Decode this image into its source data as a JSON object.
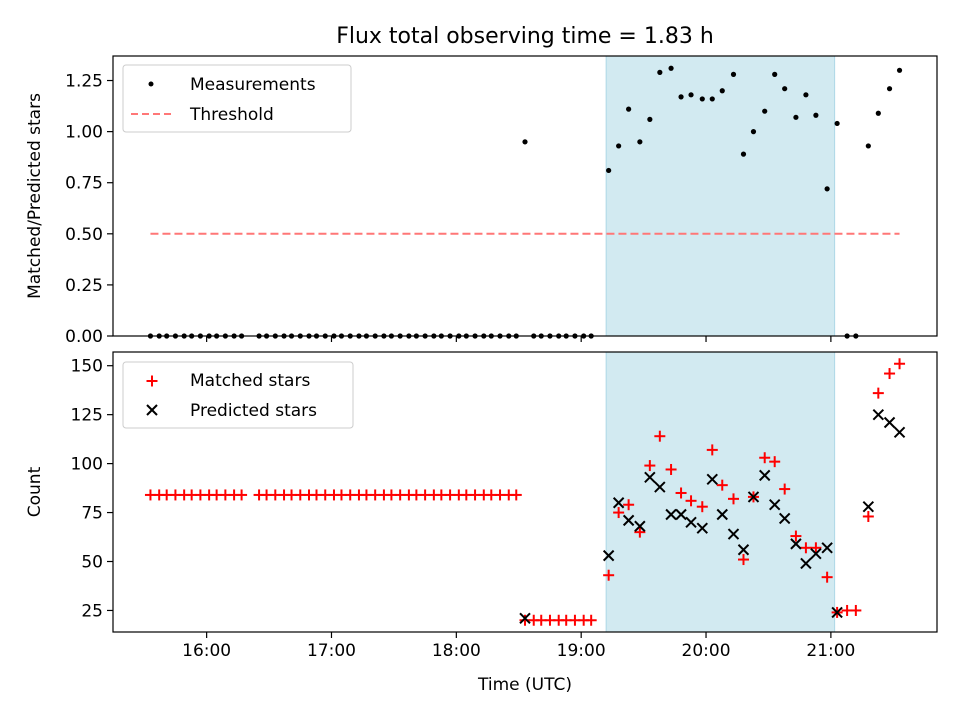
{
  "figure": {
    "title": "Flux total observing time = 1.83 h",
    "xlabel": "Time (UTC)",
    "x_ticks": [
      {
        "hours": 16,
        "label": "16:00"
      },
      {
        "hours": 17,
        "label": "17:00"
      },
      {
        "hours": 18,
        "label": "18:00"
      },
      {
        "hours": 19,
        "label": "19:00"
      },
      {
        "hours": 20,
        "label": "20:00"
      },
      {
        "hours": 21,
        "label": "21:00"
      }
    ]
  },
  "colors": {
    "measurement": "#000000",
    "threshold": "#ff7777",
    "matched": "#ff0000",
    "predicted": "#000000",
    "shade": "#add8e6"
  },
  "chart_data": [
    {
      "type": "scatter",
      "title": "Flux total observing time = 1.83 h",
      "ylabel": "Matched/Predicted stars",
      "xlabel": "",
      "x_unit": "hours UTC",
      "xlim": [
        15.25,
        21.85
      ],
      "ylim": [
        0,
        1.37
      ],
      "yticks": [
        "0.00",
        "0.25",
        "0.50",
        "0.75",
        "1.00",
        "1.25"
      ],
      "ytick_values": [
        0,
        0.25,
        0.5,
        0.75,
        1.0,
        1.25
      ],
      "shaded_interval": [
        19.2,
        21.03
      ],
      "legend": {
        "position": "top-left",
        "entries": [
          "Measurements",
          "Threshold"
        ]
      },
      "threshold": {
        "name": "Threshold",
        "y": 0.5,
        "x_range": [
          15.55,
          21.55
        ]
      },
      "series": [
        {
          "name": "Measurements",
          "marker": "dot",
          "points": [
            [
              15.55,
              0
            ],
            [
              15.62,
              0
            ],
            [
              15.68,
              0
            ],
            [
              15.75,
              0
            ],
            [
              15.82,
              0
            ],
            [
              15.88,
              0
            ],
            [
              15.95,
              0
            ],
            [
              16.02,
              0
            ],
            [
              16.08,
              0
            ],
            [
              16.15,
              0
            ],
            [
              16.22,
              0
            ],
            [
              16.28,
              0
            ],
            [
              16.42,
              0
            ],
            [
              16.48,
              0
            ],
            [
              16.55,
              0
            ],
            [
              16.62,
              0
            ],
            [
              16.68,
              0
            ],
            [
              16.75,
              0
            ],
            [
              16.82,
              0
            ],
            [
              16.88,
              0
            ],
            [
              16.95,
              0
            ],
            [
              17.02,
              0
            ],
            [
              17.08,
              0
            ],
            [
              17.15,
              0
            ],
            [
              17.22,
              0
            ],
            [
              17.28,
              0
            ],
            [
              17.35,
              0
            ],
            [
              17.42,
              0
            ],
            [
              17.48,
              0
            ],
            [
              17.55,
              0
            ],
            [
              17.62,
              0
            ],
            [
              17.68,
              0
            ],
            [
              17.75,
              0
            ],
            [
              17.82,
              0
            ],
            [
              17.88,
              0
            ],
            [
              17.95,
              0
            ],
            [
              18.02,
              0
            ],
            [
              18.08,
              0
            ],
            [
              18.15,
              0
            ],
            [
              18.22,
              0
            ],
            [
              18.28,
              0
            ],
            [
              18.35,
              0
            ],
            [
              18.42,
              0
            ],
            [
              18.48,
              0
            ],
            [
              18.55,
              0.95
            ],
            [
              18.62,
              0
            ],
            [
              18.68,
              0
            ],
            [
              18.75,
              0
            ],
            [
              18.82,
              0
            ],
            [
              18.88,
              0
            ],
            [
              18.95,
              0
            ],
            [
              19.02,
              0
            ],
            [
              19.08,
              0
            ],
            [
              19.22,
              0.81
            ],
            [
              19.3,
              0.93
            ],
            [
              19.38,
              1.11
            ],
            [
              19.47,
              0.95
            ],
            [
              19.55,
              1.06
            ],
            [
              19.63,
              1.29
            ],
            [
              19.72,
              1.31
            ],
            [
              19.8,
              1.17
            ],
            [
              19.88,
              1.18
            ],
            [
              19.97,
              1.16
            ],
            [
              20.05,
              1.16
            ],
            [
              20.13,
              1.2
            ],
            [
              20.22,
              1.28
            ],
            [
              20.3,
              0.89
            ],
            [
              20.38,
              1.0
            ],
            [
              20.47,
              1.1
            ],
            [
              20.55,
              1.28
            ],
            [
              20.63,
              1.21
            ],
            [
              20.72,
              1.07
            ],
            [
              20.8,
              1.18
            ],
            [
              20.88,
              1.08
            ],
            [
              20.97,
              0.72
            ],
            [
              21.05,
              1.04
            ],
            [
              21.13,
              0
            ],
            [
              21.2,
              0
            ],
            [
              21.3,
              0.93
            ],
            [
              21.38,
              1.09
            ],
            [
              21.47,
              1.21
            ],
            [
              21.55,
              1.3
            ]
          ]
        }
      ]
    },
    {
      "type": "scatter",
      "title": "",
      "ylabel": "Count",
      "xlabel": "Time (UTC)",
      "x_unit": "hours UTC",
      "xlim": [
        15.25,
        21.85
      ],
      "ylim": [
        14,
        157
      ],
      "yticks": [
        "25",
        "50",
        "75",
        "100",
        "125",
        "150"
      ],
      "ytick_values": [
        25,
        50,
        75,
        100,
        125,
        150
      ],
      "shaded_interval": [
        19.2,
        21.03
      ],
      "legend": {
        "position": "top-left",
        "entries": [
          "Matched stars",
          "Predicted stars"
        ]
      },
      "series": [
        {
          "name": "Matched stars",
          "marker": "plus",
          "points": [
            [
              15.55,
              84
            ],
            [
              15.62,
              84
            ],
            [
              15.68,
              84
            ],
            [
              15.75,
              84
            ],
            [
              15.82,
              84
            ],
            [
              15.88,
              84
            ],
            [
              15.95,
              84
            ],
            [
              16.02,
              84
            ],
            [
              16.08,
              84
            ],
            [
              16.15,
              84
            ],
            [
              16.22,
              84
            ],
            [
              16.28,
              84
            ],
            [
              16.42,
              84
            ],
            [
              16.48,
              84
            ],
            [
              16.55,
              84
            ],
            [
              16.62,
              84
            ],
            [
              16.68,
              84
            ],
            [
              16.75,
              84
            ],
            [
              16.82,
              84
            ],
            [
              16.88,
              84
            ],
            [
              16.95,
              84
            ],
            [
              17.02,
              84
            ],
            [
              17.08,
              84
            ],
            [
              17.15,
              84
            ],
            [
              17.22,
              84
            ],
            [
              17.28,
              84
            ],
            [
              17.35,
              84
            ],
            [
              17.42,
              84
            ],
            [
              17.48,
              84
            ],
            [
              17.55,
              84
            ],
            [
              17.62,
              84
            ],
            [
              17.68,
              84
            ],
            [
              17.75,
              84
            ],
            [
              17.82,
              84
            ],
            [
              17.88,
              84
            ],
            [
              17.95,
              84
            ],
            [
              18.02,
              84
            ],
            [
              18.08,
              84
            ],
            [
              18.15,
              84
            ],
            [
              18.22,
              84
            ],
            [
              18.28,
              84
            ],
            [
              18.35,
              84
            ],
            [
              18.42,
              84
            ],
            [
              18.48,
              84
            ],
            [
              18.55,
              20
            ],
            [
              18.62,
              20
            ],
            [
              18.68,
              20
            ],
            [
              18.75,
              20
            ],
            [
              18.82,
              20
            ],
            [
              18.88,
              20
            ],
            [
              18.95,
              20
            ],
            [
              19.02,
              20
            ],
            [
              19.08,
              20
            ],
            [
              19.22,
              43
            ],
            [
              19.3,
              75
            ],
            [
              19.38,
              79
            ],
            [
              19.47,
              65
            ],
            [
              19.55,
              99
            ],
            [
              19.63,
              114
            ],
            [
              19.72,
              97
            ],
            [
              19.8,
              85
            ],
            [
              19.88,
              81
            ],
            [
              19.97,
              78
            ],
            [
              20.05,
              107
            ],
            [
              20.13,
              89
            ],
            [
              20.22,
              82
            ],
            [
              20.3,
              51
            ],
            [
              20.38,
              83
            ],
            [
              20.47,
              103
            ],
            [
              20.55,
              101
            ],
            [
              20.63,
              87
            ],
            [
              20.72,
              63
            ],
            [
              20.8,
              57
            ],
            [
              20.88,
              57
            ],
            [
              20.97,
              42
            ],
            [
              21.05,
              24
            ],
            [
              21.13,
              25
            ],
            [
              21.2,
              25
            ],
            [
              21.3,
              73
            ],
            [
              21.38,
              136
            ],
            [
              21.47,
              146
            ],
            [
              21.55,
              151
            ]
          ]
        },
        {
          "name": "Predicted stars",
          "marker": "x",
          "points": [
            [
              18.55,
              21
            ],
            [
              19.22,
              53
            ],
            [
              19.3,
              80
            ],
            [
              19.38,
              71
            ],
            [
              19.47,
              68
            ],
            [
              19.55,
              93
            ],
            [
              19.63,
              88
            ],
            [
              19.72,
              74
            ],
            [
              19.8,
              74
            ],
            [
              19.88,
              70
            ],
            [
              19.97,
              67
            ],
            [
              20.05,
              92
            ],
            [
              20.13,
              74
            ],
            [
              20.22,
              64
            ],
            [
              20.3,
              56
            ],
            [
              20.38,
              83
            ],
            [
              20.47,
              94
            ],
            [
              20.55,
              79
            ],
            [
              20.63,
              72
            ],
            [
              20.72,
              59
            ],
            [
              20.8,
              49
            ],
            [
              20.88,
              54
            ],
            [
              20.97,
              57
            ],
            [
              21.05,
              24
            ],
            [
              21.3,
              78
            ],
            [
              21.38,
              125
            ],
            [
              21.47,
              121
            ],
            [
              21.55,
              116
            ]
          ]
        }
      ]
    }
  ]
}
